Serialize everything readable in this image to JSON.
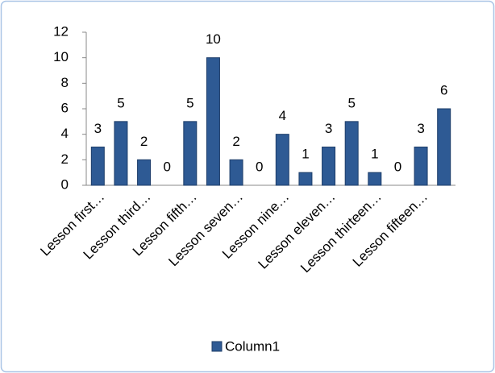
{
  "chart_data": {
    "type": "bar",
    "categories": [
      "Lesson first…",
      null,
      "Lesson third…",
      null,
      "Lesson fifth…",
      null,
      "Lesson seven…",
      null,
      "Lesson nine…",
      null,
      "Lesson eleven…",
      null,
      "Lesson thirteen…",
      null,
      "Lesson fifteen…",
      null
    ],
    "series": [
      {
        "name": "Column1",
        "color": "#2e5a94",
        "values": [
          3,
          5,
          2,
          0,
          5,
          10,
          2,
          0,
          4,
          1,
          3,
          5,
          1,
          0,
          3,
          6
        ]
      }
    ],
    "ylim": [
      0,
      12
    ],
    "yticks": [
      0,
      2,
      4,
      6,
      8,
      10,
      12
    ],
    "grid": false,
    "legend": "bottom",
    "data_labels": true
  }
}
